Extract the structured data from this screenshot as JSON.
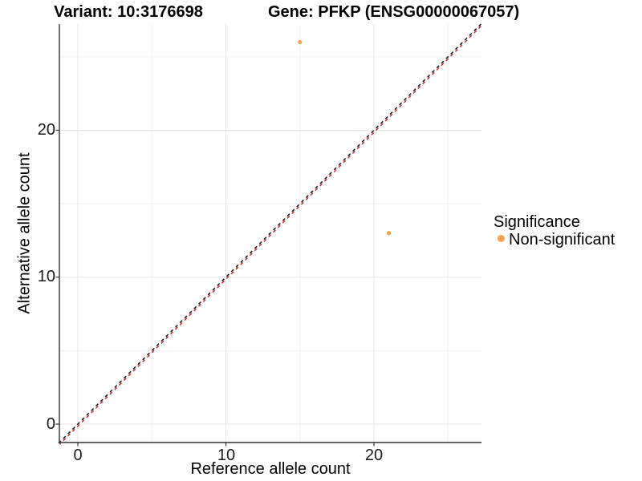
{
  "chart_data": {
    "type": "scatter",
    "titles": [
      "Variant: 10:3176698",
      "Gene: PFKP (ENSG00000067057)"
    ],
    "xlabel": "Reference allele count",
    "ylabel": "Alternative allele count",
    "x_ticks": [
      0,
      10,
      20
    ],
    "y_ticks": [
      0,
      10,
      20
    ],
    "x_minor_ticks": [
      5,
      15,
      25
    ],
    "y_minor_ticks": [
      5,
      15,
      25
    ],
    "xlim": [
      -1.3,
      27.3
    ],
    "ylim": [
      -1.3,
      27.3
    ],
    "grid": "on",
    "series": [
      {
        "name": "Non-significant",
        "color": "#F8A44C",
        "points": [
          {
            "x": 15,
            "y": 26
          },
          {
            "x": 21,
            "y": 13
          }
        ]
      }
    ],
    "identity_line": {
      "equation": "y = x",
      "style": "dashed",
      "colors": [
        "#141414",
        "#D42B2B"
      ]
    },
    "legend": {
      "title": "Significance",
      "position": "right",
      "entries": [
        {
          "label": "Non-significant",
          "color": "#F8A44C"
        }
      ]
    },
    "colors": {
      "grid_major": "#E5E5E5",
      "grid_minor": "#F0F0F0",
      "axis_line": "#333333",
      "point": "#F8A44C"
    }
  }
}
